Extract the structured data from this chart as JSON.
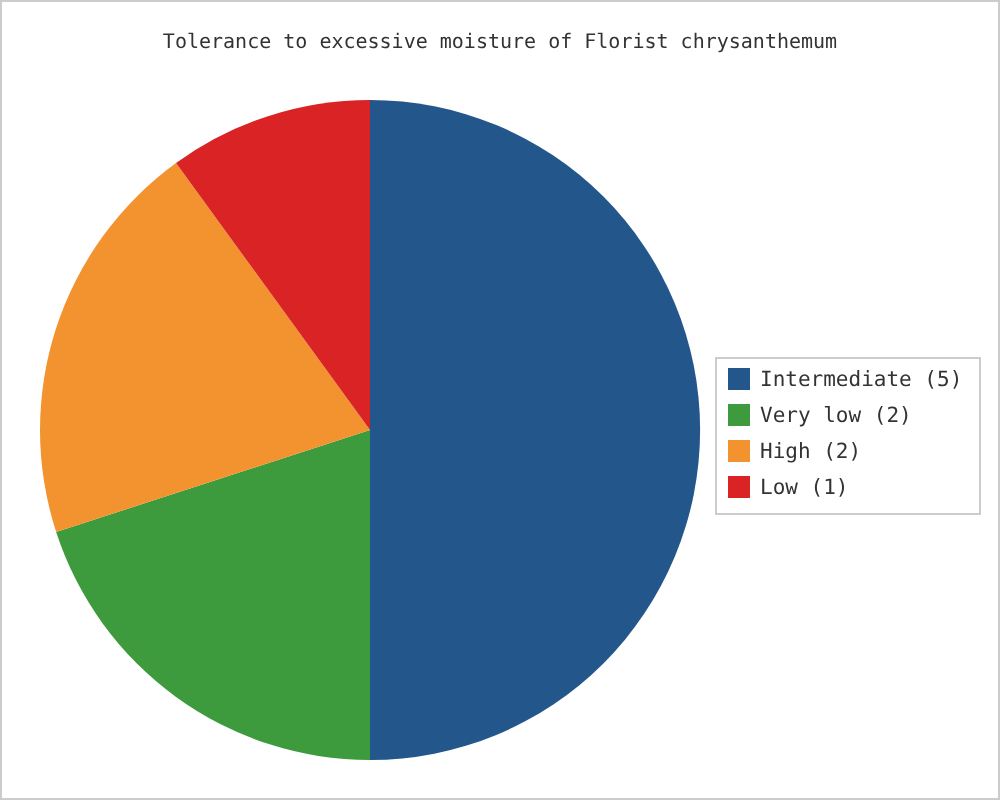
{
  "chart_data": {
    "type": "pie",
    "title": "Tolerance to excessive moisture of Florist chrysanthemum",
    "categories": [
      "Intermediate (5)",
      "Very low (2)",
      "High (2)",
      "Low (1)"
    ],
    "values": [
      5,
      2,
      2,
      1
    ],
    "colors": [
      "#23578b",
      "#3d9a3d",
      "#f2932f",
      "#d92324"
    ],
    "legend": "right"
  }
}
